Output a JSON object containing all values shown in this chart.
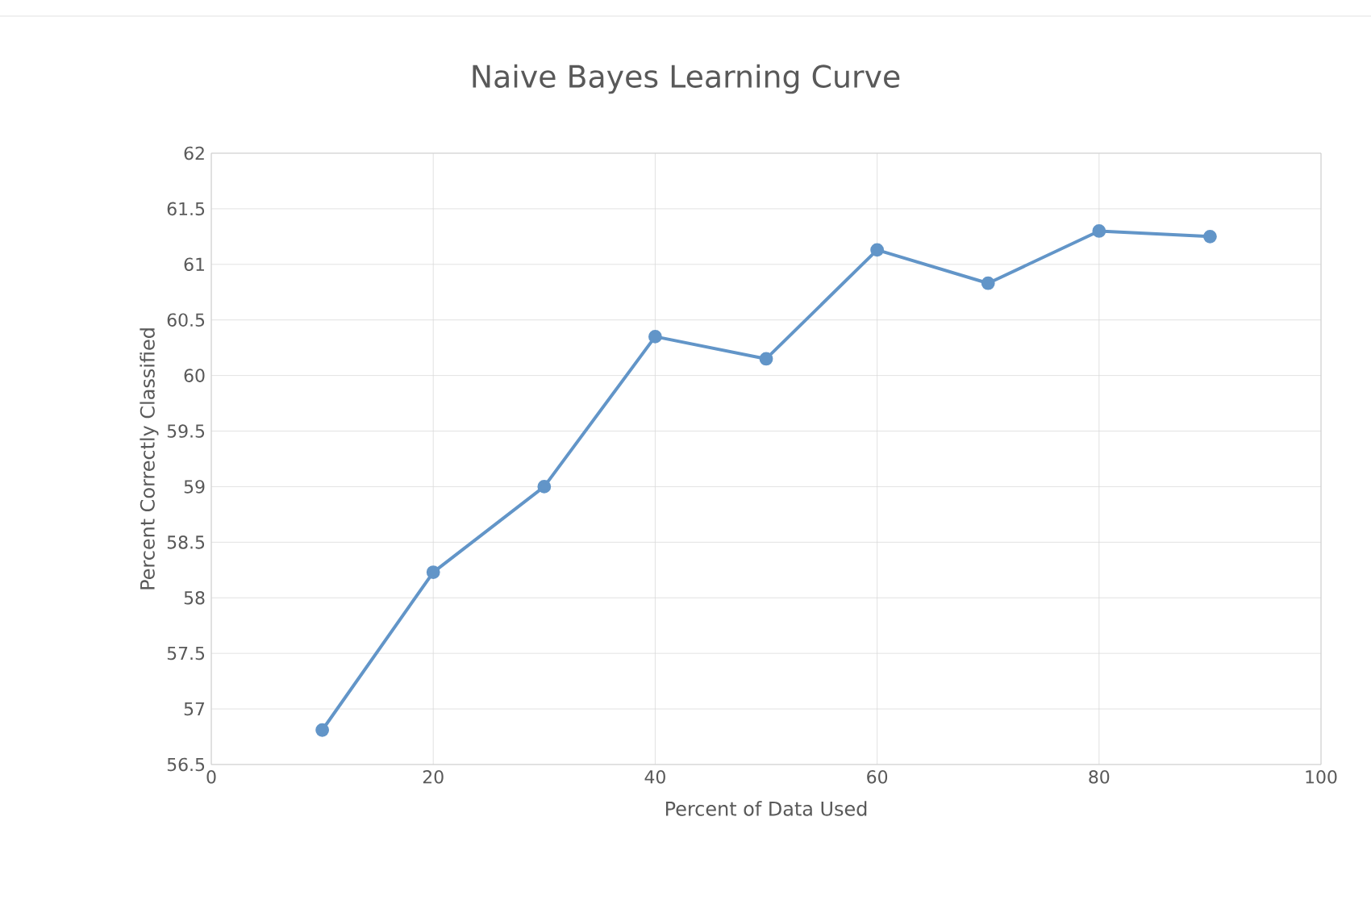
{
  "chart_data": {
    "type": "line",
    "title": "Naive Bayes Learning Curve",
    "xlabel": "Percent of Data Used",
    "ylabel": "Percent Correctly Classified",
    "x": [
      10,
      20,
      30,
      40,
      50,
      60,
      70,
      80,
      90
    ],
    "series": [
      {
        "color": "#6295c8",
        "values": [
          56.81,
          58.23,
          59.0,
          60.35,
          60.15,
          61.13,
          60.83,
          61.3,
          61.25
        ]
      }
    ],
    "xlim": [
      0,
      100
    ],
    "xticks": [
      0,
      20,
      40,
      60,
      80,
      100
    ],
    "ylim": [
      56.5,
      62
    ],
    "yticks": [
      56.5,
      57,
      57.5,
      58,
      58.5,
      59,
      59.5,
      60,
      60.5,
      61,
      61.5,
      62
    ],
    "grid": true,
    "marker": "circle",
    "line_style": "solid",
    "legend": false
  }
}
